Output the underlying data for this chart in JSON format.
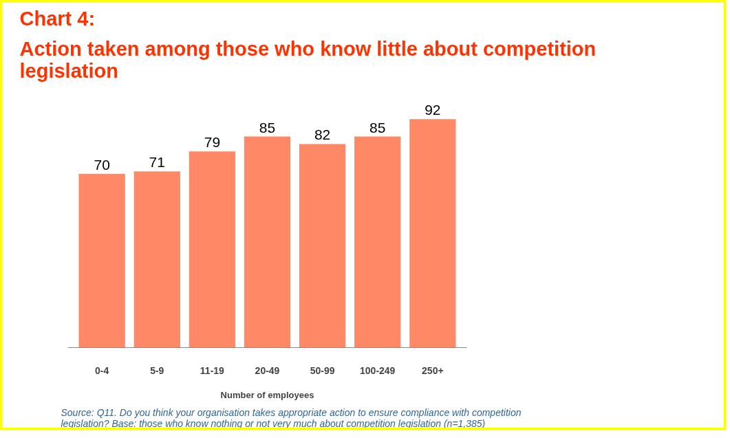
{
  "chart_data": {
    "type": "bar",
    "title": "Chart 4:",
    "subtitle": "Action taken among those who know little about competition legislation",
    "categories": [
      "0-4",
      "5-9",
      "11-19",
      "20-49",
      "50-99",
      "100-249",
      "250+"
    ],
    "values": [
      70,
      71,
      79,
      85,
      82,
      85,
      92
    ],
    "color": "#ff8866",
    "data_labels": true,
    "grid": false,
    "xlabel": "Number of employees",
    "annotations": [
      "Source:  Q11. Do you think your organisation takes appropriate action to ensure compliance with competition legislation? Base: those who know nothing or not very much about competition legislation (n=1,385)"
    ]
  }
}
